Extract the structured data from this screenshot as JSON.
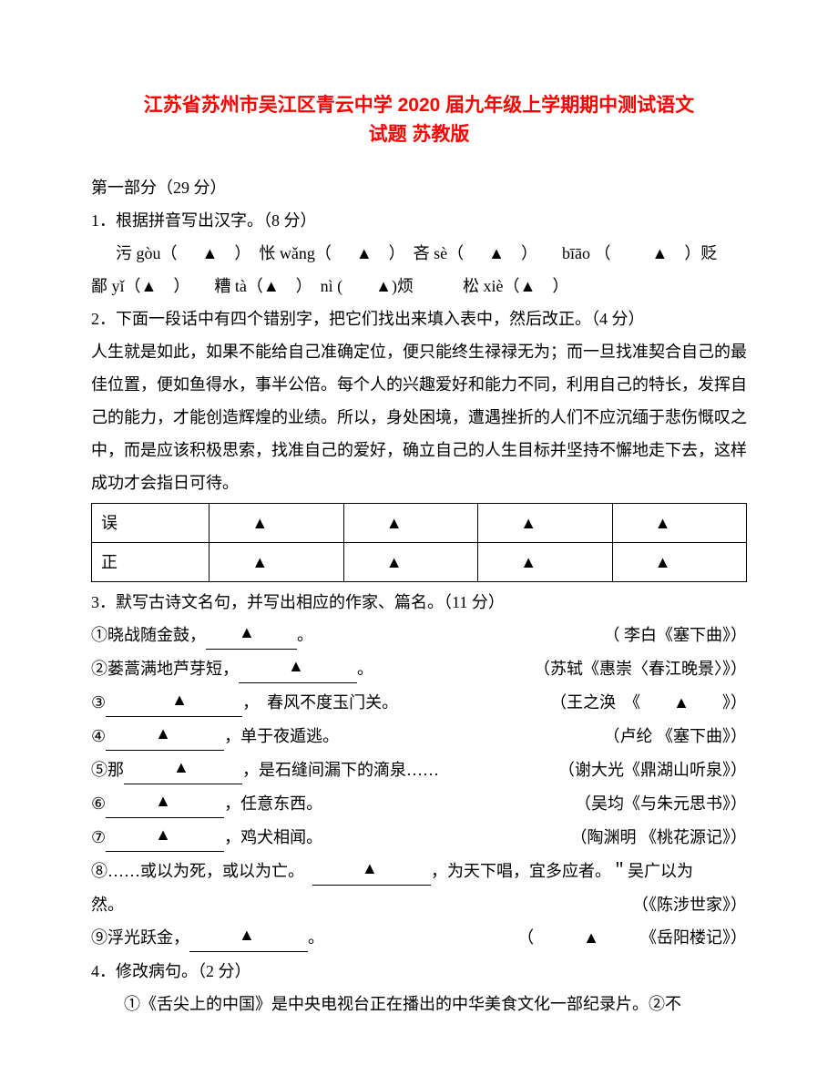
{
  "title_line1": "江苏省苏州市吴江区青云中学 2020 届九年级上学期期中测试语文",
  "title_line2": "试题 苏教版",
  "section1": "第一部分（29 分）",
  "q1": {
    "prompt": "1．根据拼音写出汉字。（8 分）",
    "line1_a": "污 gòu（",
    "line1_b": "）　怅 wǎng（",
    "line1_c": "）　吝 sè（",
    "line1_d": "）　　bīāo （　",
    "line1_e": "）贬",
    "line2_a": "鄙 yǐ（",
    "line2_b": "）　　糟 tà（",
    "line2_c": "）　nì (　　",
    "line2_d": ")烦　　　松 xiè（",
    "line2_e": "）"
  },
  "q2": {
    "prompt": "2．下面一段话中有四个错别字，把它们找出来填入表中，然后改正。（4 分）",
    "passage": "人生就是如此，如果不能给自己准确定位，便只能终生禄禄无为；而一旦找准契合自己的最佳位置，便如鱼得水，事半公倍。每个人的兴趣爱好和能力不同，利用自己的特长，发挥自己的能力，才能创造辉煌的业绩。所以，身处困境，遭遇挫折的人们不应沉缅于悲伤慨叹之中，而是应该积极思索，找准自己的爱好，确立自己的人生目标并坚持不懈地走下去，这样成功才会指日可待。",
    "row1_h": "误",
    "row2_h": "正"
  },
  "q3": {
    "prompt": "3．默写古诗文名句，并写出相应的作家、篇名。（11 分）",
    "lines": [
      {
        "left_a": "①晓战随金鼓，",
        "left_b": "。",
        "right": "（ 李白《塞下曲》）"
      },
      {
        "left_a": "②蒌蒿满地芦芽短，",
        "left_b": "。",
        "right": "（苏轼《惠崇〈春江晚景〉》）"
      },
      {
        "left_a": "③",
        "left_b": "，　春风不度玉门关。",
        "right": "（王之涣　《　　▲　　》）"
      },
      {
        "left_a": "④",
        "left_b": "，单于夜遁逃。",
        "right": "（卢纶 《塞下曲》）"
      },
      {
        "left_a": "⑤那",
        "left_b": "，是石缝间漏下的滴泉……",
        "right": "（谢大光《鼎湖山听泉》）"
      },
      {
        "left_a": "⑥",
        "left_b": "，任意东西。",
        "right": "（吴均《与朱元思书》）"
      },
      {
        "left_a": "⑦",
        "left_b": "，鸡犬相闻。",
        "right": "（陶渊明 《桃花源记》）"
      }
    ],
    "line8_a": "⑧……或以为死，或以为亡。　",
    "line8_b": "，为天下唱，宜多应者。＂吴广以为",
    "line8_c": "然。",
    "line8_right": "（《陈涉世家》）",
    "line9_a": "⑨浮光跃金，",
    "line9_b": "。",
    "line9_right": "（　　　▲　　　《岳阳楼记》）"
  },
  "q4": {
    "prompt": "4．修改病句。（2 分）",
    "text": "①《舌尖上的中国》是中央电视台正在播出的中华美食文化一部纪录片。②不"
  },
  "tri": "▲",
  "tri2": "▲　",
  "colors": {
    "title": "#ff0000",
    "text": "#000000",
    "bg": "#ffffff"
  }
}
